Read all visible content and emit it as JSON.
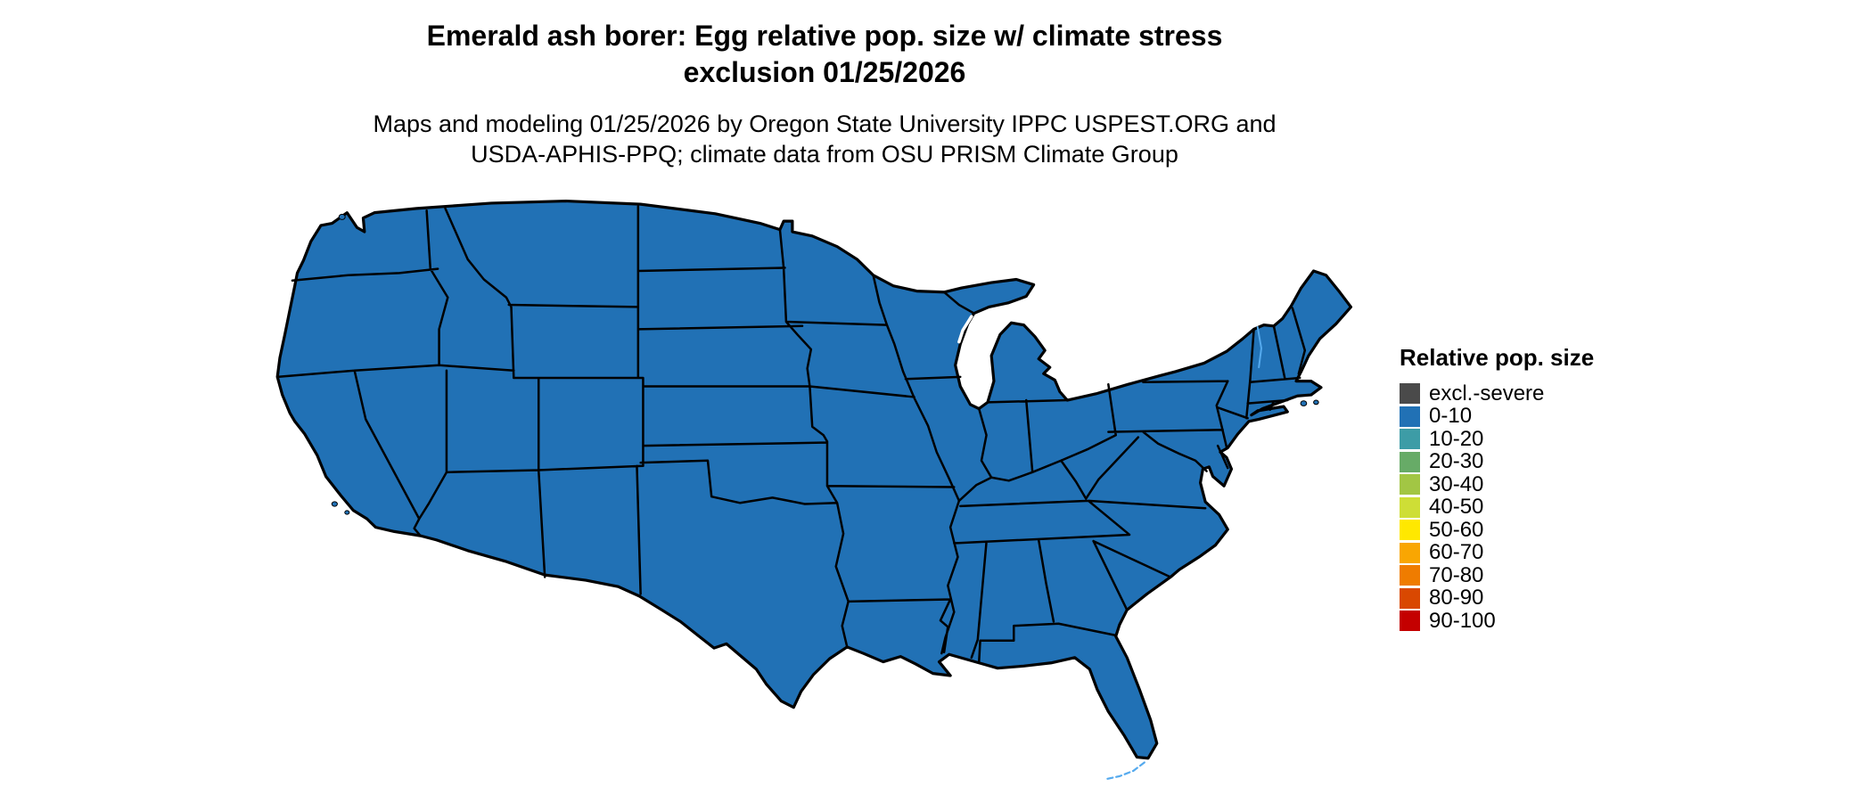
{
  "header": {
    "title_line1": "Emerald ash borer: Egg relative pop. size w/ climate stress",
    "title_line2": "exclusion 01/25/2026",
    "subtitle_line1": "Maps and modeling 01/25/2026 by Oregon State University IPPC USPEST.ORG and",
    "subtitle_line2": "USDA-APHIS-PPQ; climate data from OSU PRISM Climate Group"
  },
  "map": {
    "region": "Contiguous United States",
    "type": "choropleth",
    "uniform_category": "0-10",
    "fill_color": "#2171b5",
    "border_color": "#000000",
    "water_detail_color": "#55aaee",
    "background_color": "#ffffff"
  },
  "legend": {
    "title": "Relative pop. size",
    "items": [
      {
        "label": "excl.-severe",
        "color": "#4a4a4a"
      },
      {
        "label": "0-10",
        "color": "#2171b5"
      },
      {
        "label": "10-20",
        "color": "#3d9ca6"
      },
      {
        "label": "20-30",
        "color": "#67ab67"
      },
      {
        "label": "30-40",
        "color": "#a2c644"
      },
      {
        "label": "40-50",
        "color": "#cede36"
      },
      {
        "label": "50-60",
        "color": "#ffe800"
      },
      {
        "label": "60-70",
        "color": "#f9a602"
      },
      {
        "label": "70-80",
        "color": "#ef7c00"
      },
      {
        "label": "80-90",
        "color": "#d94801"
      },
      {
        "label": "90-100",
        "color": "#c40000"
      }
    ]
  }
}
